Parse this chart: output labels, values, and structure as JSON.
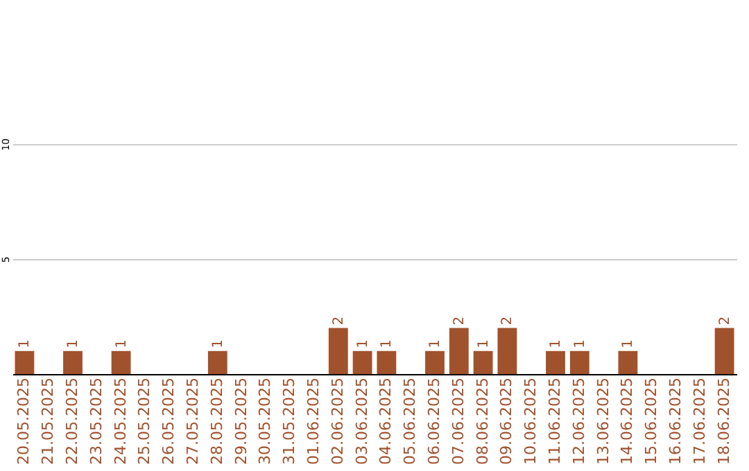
{
  "chart_data": {
    "type": "bar",
    "categories": [
      "20.05.2025",
      "21.05.2025",
      "22.05.2025",
      "23.05.2025",
      "24.05.2025",
      "25.05.2025",
      "26.05.2025",
      "27.05.2025",
      "28.05.2025",
      "29.05.2025",
      "30.05.2025",
      "31.05.2025",
      "01.06.2025",
      "02.06.2025",
      "03.06.2025",
      "04.06.2025",
      "05.06.2025",
      "06.06.2025",
      "07.06.2025",
      "08.06.2025",
      "09.06.2025",
      "10.06.2025",
      "11.06.2025",
      "12.06.2025",
      "13.06.2025",
      "14.06.2025",
      "15.06.2025",
      "16.06.2025",
      "17.06.2025",
      "18.06.2025"
    ],
    "values": [
      1,
      0,
      1,
      0,
      1,
      0,
      0,
      0,
      1,
      0,
      0,
      0,
      0,
      2,
      1,
      1,
      0,
      1,
      2,
      1,
      2,
      0,
      1,
      1,
      0,
      1,
      0,
      0,
      0,
      2
    ],
    "value_labels": [
      "1",
      null,
      "1",
      null,
      "1",
      null,
      null,
      null,
      "1",
      null,
      null,
      null,
      null,
      "2",
      "1",
      "1",
      null,
      "1",
      "2",
      "1",
      "2",
      null,
      "1",
      "1",
      null,
      "1",
      null,
      null,
      null,
      "2"
    ],
    "color": "#a0522d",
    "ylim": [
      0,
      16.25
    ],
    "yticks": [
      5,
      10
    ],
    "grid": "y"
  }
}
